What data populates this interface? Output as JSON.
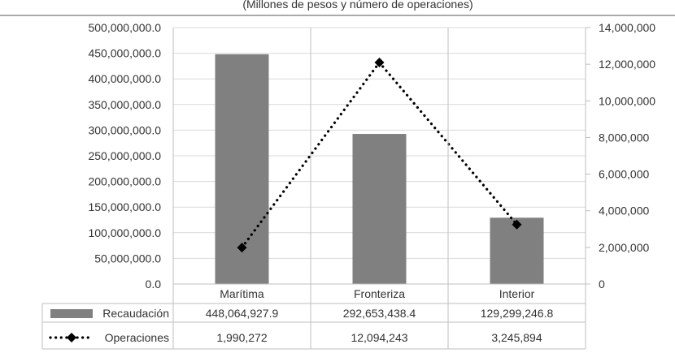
{
  "chart_data": {
    "type": "bar",
    "title": "(Millones de pesos y número de operaciones)",
    "categories": [
      "Marítima",
      "Fronteriza",
      "Interior"
    ],
    "series": [
      {
        "name": "Recaudación",
        "kind": "bar",
        "axis": "left",
        "values": [
          448064927.9,
          292653438.4,
          129299246.8
        ],
        "labels": [
          "448,064,927.9",
          "292,653,438.4",
          "129,299,246.8"
        ],
        "color": "#808080"
      },
      {
        "name": "Operaciones",
        "kind": "line",
        "axis": "right",
        "line_style": "dotted",
        "marker": "diamond",
        "values": [
          1990272,
          12094243,
          3245894
        ],
        "labels": [
          "1,990,272",
          "12,094,243",
          "3,245,894"
        ],
        "color": "#000000"
      }
    ],
    "y_left": {
      "range": [
        0,
        500000000
      ],
      "ticks": [
        {
          "v": 0,
          "label": "0.0"
        },
        {
          "v": 50000000,
          "label": "50,000,000.0"
        },
        {
          "v": 100000000,
          "label": "100,000,000.0"
        },
        {
          "v": 150000000,
          "label": "150,000,000.0"
        },
        {
          "v": 200000000,
          "label": "200,000,000.0"
        },
        {
          "v": 250000000,
          "label": "250,000,000.0"
        },
        {
          "v": 300000000,
          "label": "300,000,000.0"
        },
        {
          "v": 350000000,
          "label": "350,000,000.0"
        },
        {
          "v": 400000000,
          "label": "400,000,000.0"
        },
        {
          "v": 450000000,
          "label": "450,000,000.0"
        },
        {
          "v": 500000000,
          "label": "500,000,000.0"
        }
      ]
    },
    "y_right": {
      "range": [
        0,
        14000000
      ],
      "ticks": [
        {
          "v": 0,
          "label": "0"
        },
        {
          "v": 2000000,
          "label": "2,000,000"
        },
        {
          "v": 4000000,
          "label": "4,000,000"
        },
        {
          "v": 6000000,
          "label": "6,000,000"
        },
        {
          "v": 8000000,
          "label": "8,000,000"
        },
        {
          "v": 10000000,
          "label": "10,000,000"
        },
        {
          "v": 12000000,
          "label": "12,000,000"
        },
        {
          "v": 14000000,
          "label": "14,000,000"
        }
      ]
    },
    "grid": true,
    "legend": "data-table-below"
  }
}
